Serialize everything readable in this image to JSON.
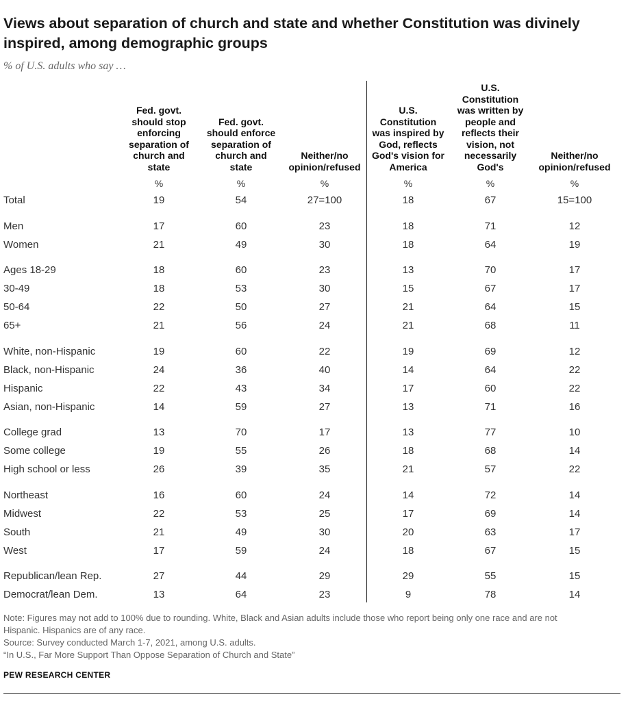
{
  "title": "Views about separation of church and state and whether Constitution was divinely inspired, among demographic groups",
  "subtitle": "% of U.S. adults who say …",
  "chart_data": {
    "type": "table",
    "columns": [
      {
        "lines": [
          "Fed. govt.",
          "should stop",
          "enforcing",
          "separation of",
          "church and",
          "state"
        ],
        "unit": "%"
      },
      {
        "lines": [
          "Fed. govt.",
          "should enforce",
          "separation of",
          "church and",
          "state"
        ],
        "unit": "%"
      },
      {
        "lines": [
          "Neither/no",
          "opinion/refused"
        ],
        "unit": "%"
      },
      {
        "lines": [
          "U.S.",
          "Constitution",
          "was inspired by",
          "God, reflects",
          "God's vision for",
          "America"
        ],
        "unit": "%"
      },
      {
        "lines": [
          "U.S.",
          "Constitution",
          "was written by",
          "people and",
          "reflects their",
          "vision, not",
          "necessarily",
          "God's"
        ],
        "unit": "%"
      },
      {
        "lines": [
          "Neither/no",
          "opinion/refused"
        ],
        "unit": "%"
      }
    ],
    "rows": [
      {
        "label": "Total",
        "values": [
          "19",
          "54",
          "27=100",
          "18",
          "67",
          "15=100"
        ]
      },
      {
        "label": "Men",
        "values": [
          "17",
          "60",
          "23",
          "18",
          "71",
          "12"
        ]
      },
      {
        "label": "Women",
        "values": [
          "21",
          "49",
          "30",
          "18",
          "64",
          "19"
        ]
      },
      {
        "label": "Ages 18-29",
        "values": [
          "18",
          "60",
          "23",
          "13",
          "70",
          "17"
        ]
      },
      {
        "label": "30-49",
        "values": [
          "18",
          "53",
          "30",
          "15",
          "67",
          "17"
        ]
      },
      {
        "label": "50-64",
        "values": [
          "22",
          "50",
          "27",
          "21",
          "64",
          "15"
        ]
      },
      {
        "label": "65+",
        "values": [
          "21",
          "56",
          "24",
          "21",
          "68",
          "11"
        ]
      },
      {
        "label": "White, non-Hispanic",
        "values": [
          "19",
          "60",
          "22",
          "19",
          "69",
          "12"
        ]
      },
      {
        "label": "Black, non-Hispanic",
        "values": [
          "24",
          "36",
          "40",
          "14",
          "64",
          "22"
        ]
      },
      {
        "label": "Hispanic",
        "values": [
          "22",
          "43",
          "34",
          "17",
          "60",
          "22"
        ]
      },
      {
        "label": "Asian, non-Hispanic",
        "values": [
          "14",
          "59",
          "27",
          "13",
          "71",
          "16"
        ]
      },
      {
        "label": "College grad",
        "values": [
          "13",
          "70",
          "17",
          "13",
          "77",
          "10"
        ]
      },
      {
        "label": "Some college",
        "values": [
          "19",
          "55",
          "26",
          "18",
          "68",
          "14"
        ]
      },
      {
        "label": "High school or less",
        "values": [
          "26",
          "39",
          "35",
          "21",
          "57",
          "22"
        ]
      },
      {
        "label": "Northeast",
        "values": [
          "16",
          "60",
          "24",
          "14",
          "72",
          "14"
        ]
      },
      {
        "label": "Midwest",
        "values": [
          "22",
          "53",
          "25",
          "17",
          "69",
          "14"
        ]
      },
      {
        "label": "South",
        "values": [
          "21",
          "49",
          "30",
          "20",
          "63",
          "17"
        ]
      },
      {
        "label": "West",
        "values": [
          "17",
          "59",
          "24",
          "18",
          "67",
          "15"
        ]
      },
      {
        "label": "Republican/lean Rep.",
        "values": [
          "27",
          "44",
          "29",
          "29",
          "55",
          "15"
        ]
      },
      {
        "label": "Democrat/lean Dem.",
        "values": [
          "13",
          "64",
          "23",
          "9",
          "78",
          "14"
        ]
      }
    ]
  },
  "notes": [
    "Note: Figures may not add to 100% due to rounding. White, Black and Asian adults include those who report being only one race and are not",
    "Hispanic. Hispanics are of any race.",
    "Source: Survey conducted March 1-7, 2021, among U.S. adults.",
    "“In U.S., Far More Support Than Oppose Separation of Church and State”"
  ],
  "org": "PEW RESEARCH CENTER"
}
